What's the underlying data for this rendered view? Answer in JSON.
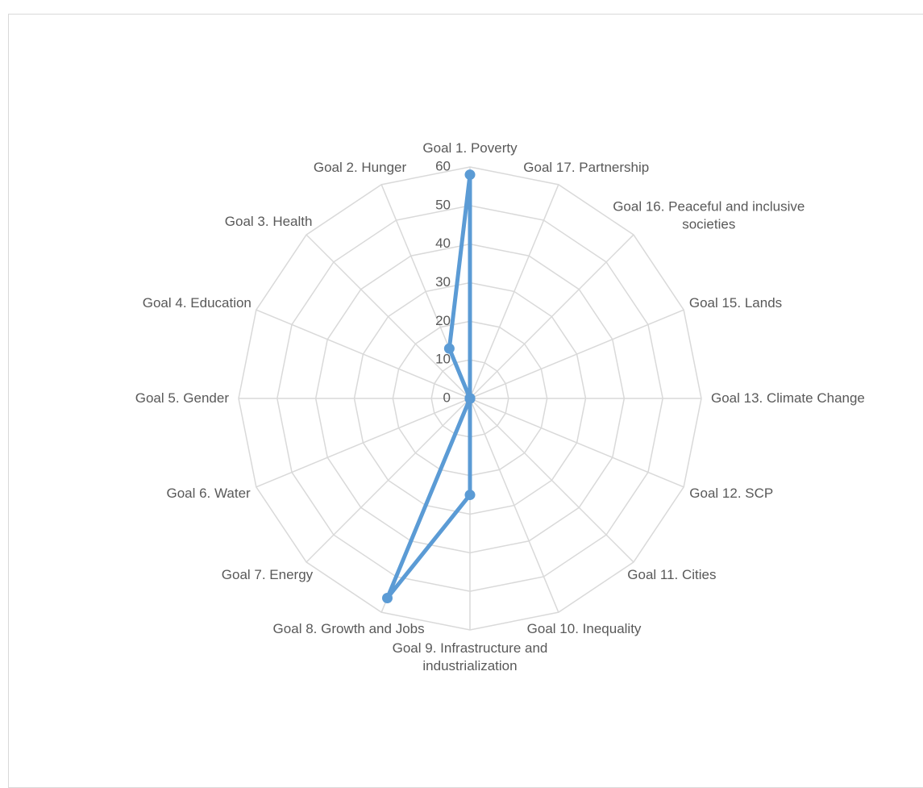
{
  "chart_data": {
    "type": "radar",
    "categories": [
      "Goal 1. Poverty",
      "Goal 17. Partnership",
      "Goal 16. Peaceful and inclusive societies",
      "Goal 15. Lands",
      "Goal 13. Climate Change",
      "Goal 12. SCP",
      "Goal 11. Cities",
      "Goal 10. Inequality",
      "Goal 9. Infrastructure and industrialization",
      "Goal 8. Growth and Jobs",
      "Goal 7. Energy",
      "Goal 6. Water",
      "Goal 5. Gender",
      "Goal 4. Education",
      "Goal 3. Health",
      "Goal 2. Hunger"
    ],
    "values": [
      58,
      0,
      0,
      0,
      0,
      0,
      0,
      0,
      25,
      56,
      0,
      0,
      0,
      0,
      0,
      14
    ],
    "color": "#5b9bd5",
    "ylim": [
      0,
      60
    ],
    "yticks": [
      0,
      10,
      20,
      30,
      40,
      50,
      60
    ],
    "grid": true
  }
}
